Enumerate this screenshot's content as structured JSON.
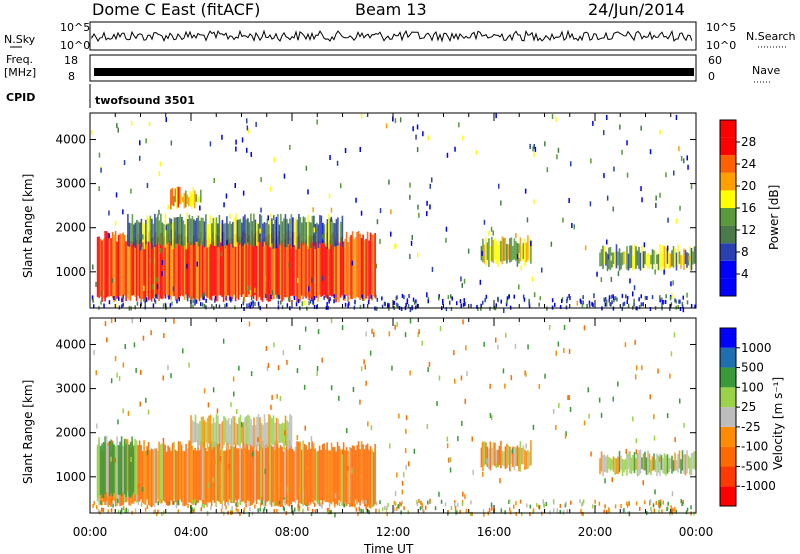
{
  "header": {
    "station": "Dome C East (fitACF)",
    "beam": "Beam 13",
    "date": "24/Jun/2014"
  },
  "aux_panels": {
    "nsky_label": "N.Sky",
    "nsky_ticks": [
      "10^5",
      "10^0"
    ],
    "nsearch_label": "N.Search",
    "nsearch_ticks": [
      "10^5",
      "10^0"
    ],
    "freq_label_1": "Freq.",
    "freq_label_2": "[MHz]",
    "freq_ticks": [
      "18",
      "8"
    ],
    "nave_label": "Nave",
    "nave_ticks": [
      "60",
      "0"
    ],
    "cpid_label": "CPID",
    "cpid_value": "twofsound 3501"
  },
  "colors": {
    "power_scale": [
      "#0000ff",
      "#0000ff",
      "#2a3fb0",
      "#4a7a4a",
      "#5a9a3a",
      "#ffff00",
      "#ffa000",
      "#ff6000",
      "#ff0000",
      "#ff0000"
    ],
    "velocity_scale": [
      "#ff0000",
      "#ff3a00",
      "#ff6a00",
      "#ff8c00",
      "#bdbdbd",
      "#9ad24a",
      "#3a9a3a",
      "#1e6fb0",
      "#0000ff"
    ],
    "axis": "#000000"
  },
  "chart_data": [
    {
      "type": "heatmap",
      "name": "power",
      "ylabel": "Slant Range [km]",
      "xlabel": "",
      "x_ticks": [
        "00:00",
        "04:00",
        "08:00",
        "12:00",
        "16:00",
        "20:00",
        "00:00"
      ],
      "xlim": [
        0,
        24
      ],
      "y_ticks": [
        "1000",
        "2000",
        "3000",
        "4000"
      ],
      "ylim": [
        180,
        4600
      ],
      "colorbar_label": "Power [dB]",
      "colorbar_ticks": [
        "4",
        "8",
        "12",
        "16",
        "20",
        "24",
        "28"
      ],
      "colorbar_range": [
        0,
        32
      ],
      "features": [
        {
          "t_start": 0.3,
          "t_end": 11.3,
          "r_low": 400,
          "r_high": 1800,
          "value": 26
        },
        {
          "t_start": 1.5,
          "t_end": 10.0,
          "r_low": 1600,
          "r_high": 2200,
          "value": 12
        },
        {
          "t_start": 3.2,
          "t_end": 4.4,
          "r_low": 2500,
          "r_high": 2800,
          "value": 20
        },
        {
          "t_start": 15.5,
          "t_end": 17.5,
          "r_low": 1200,
          "r_high": 1700,
          "value": 16
        },
        {
          "t_start": 20.2,
          "t_end": 24.0,
          "r_low": 1100,
          "r_high": 1500,
          "value": 14
        }
      ]
    },
    {
      "type": "heatmap",
      "name": "velocity",
      "ylabel": "Slant Range [km]",
      "xlabel": "Time UT",
      "x_ticks": [
        "00:00",
        "04:00",
        "08:00",
        "12:00",
        "16:00",
        "20:00",
        "00:00"
      ],
      "xlim": [
        0,
        24
      ],
      "y_ticks": [
        "1000",
        "2000",
        "3000",
        "4000"
      ],
      "ylim": [
        180,
        4600
      ],
      "colorbar_label": "Velocity [m s⁻¹]",
      "colorbar_ticks": [
        "1000",
        "500",
        "100",
        "25",
        "-25",
        "-100",
        "-500",
        "-1000"
      ],
      "features": [
        {
          "t_start": 0.3,
          "t_end": 11.3,
          "r_low": 400,
          "r_high": 1700,
          "value": -200
        },
        {
          "t_start": 4.0,
          "t_end": 8.0,
          "r_low": 1700,
          "r_high": 2300,
          "value": 0
        },
        {
          "t_start": 0.3,
          "t_end": 1.8,
          "r_low": 600,
          "r_high": 1800,
          "value": 200
        },
        {
          "t_start": 15.5,
          "t_end": 17.5,
          "r_low": 1200,
          "r_high": 1700,
          "value": -50
        },
        {
          "t_start": 20.2,
          "t_end": 24.0,
          "r_low": 1100,
          "r_high": 1500,
          "value": 50
        }
      ]
    }
  ]
}
